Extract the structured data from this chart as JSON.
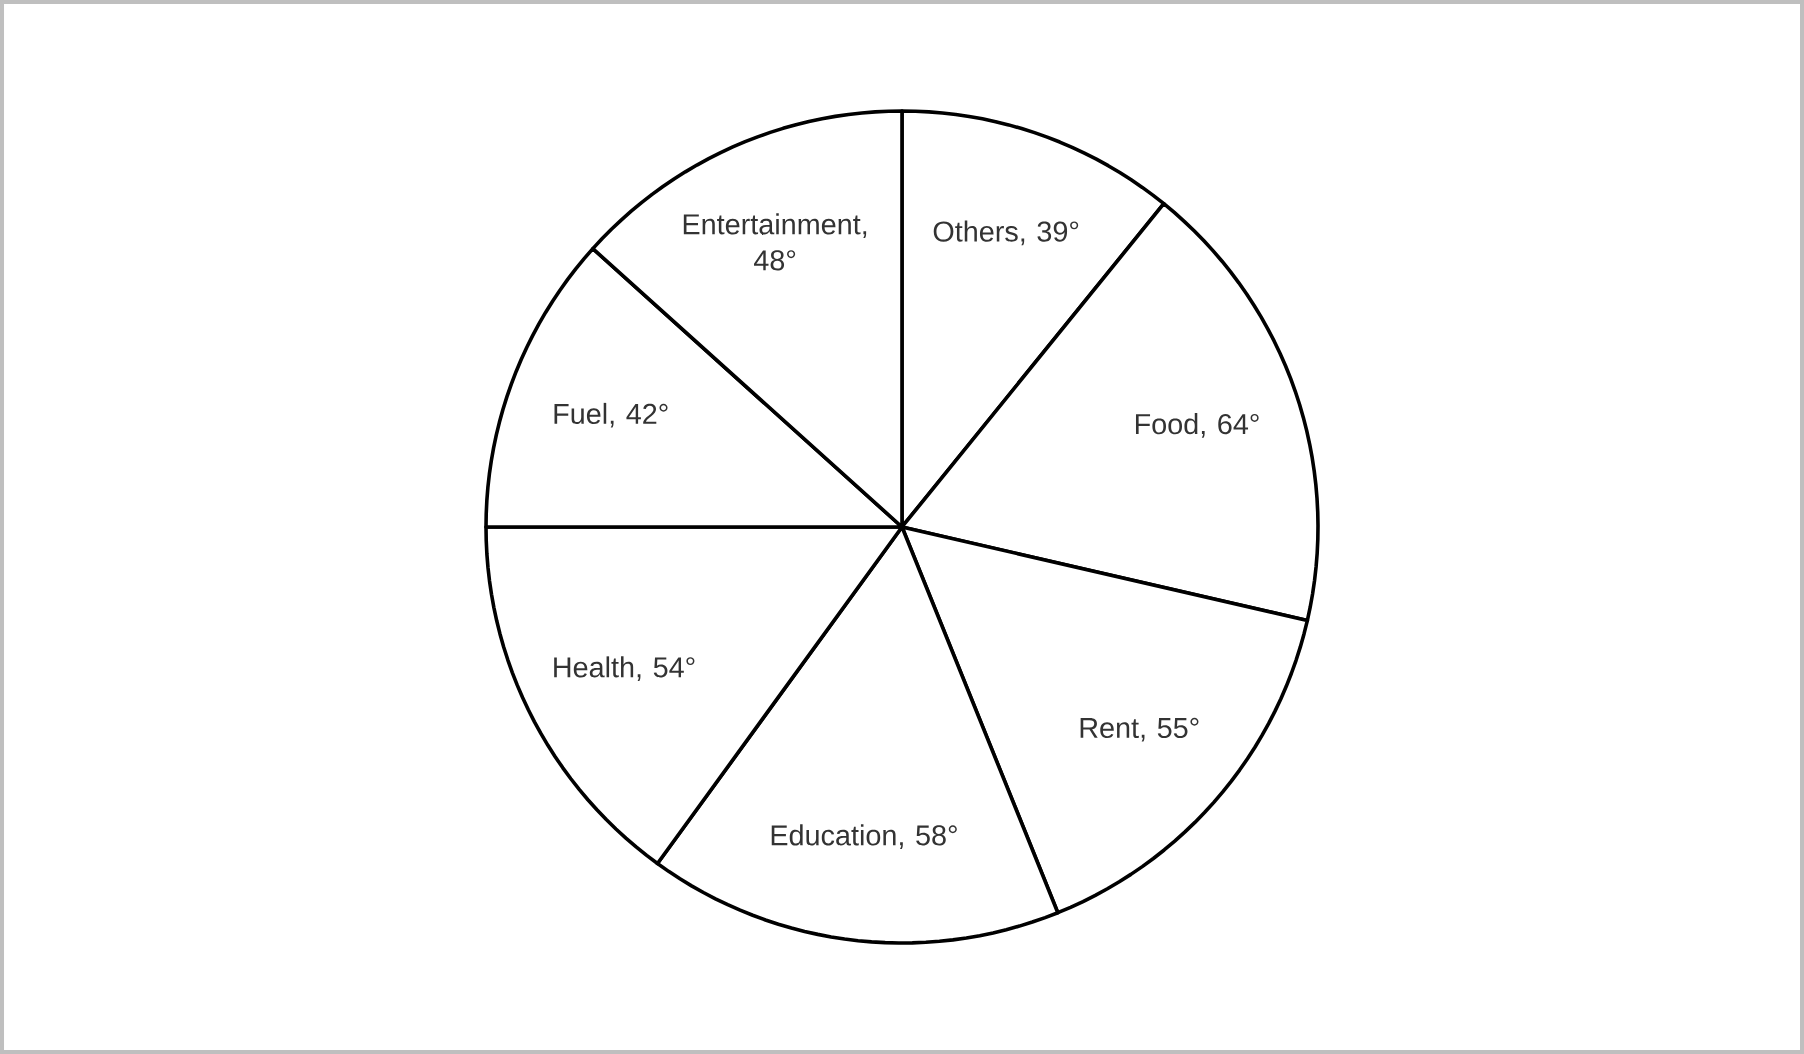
{
  "chart_data": {
    "type": "pie",
    "categories": [
      "Others, 39°",
      "Food, 64°",
      "Rent, 55°",
      "Education, 58°",
      "Health, 54°",
      "Fuel, 42°",
      "Entertainment, 48°"
    ],
    "values": [
      39,
      64,
      55,
      58,
      54,
      42,
      48
    ],
    "colors": [
      "#ffffff",
      "#ffffff",
      "#ffffff",
      "#ffffff",
      "#ffffff",
      "#ffffff",
      "#ffffff"
    ]
  }
}
